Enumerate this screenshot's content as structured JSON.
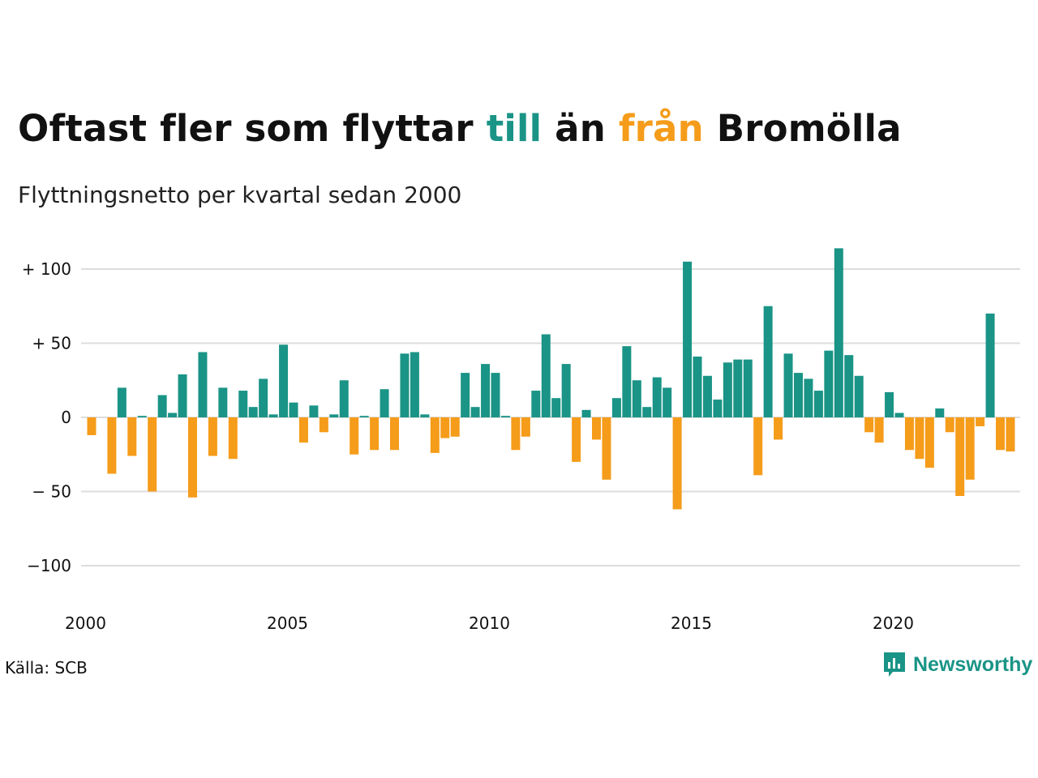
{
  "title": {
    "part1": "Oftast fler som flyttar ",
    "till": "till",
    "part2": " än ",
    "fran": "från",
    "part3": " Bromölla"
  },
  "subtitle": "Flyttningsnetto per kvartal sedan 2000",
  "source": "Källa: SCB",
  "brand": "Newsworthy",
  "colors": {
    "positive": "#1a9486",
    "negative": "#f59c1a",
    "grid": "#dddddd",
    "text": "#111111"
  },
  "chart_data": {
    "type": "bar",
    "start_year": 2000,
    "periods_per_year": 4,
    "ylim": [
      -120,
      120
    ],
    "yticks": [
      {
        "value": 100,
        "label": "+ 100"
      },
      {
        "value": 50,
        "label": "+  50"
      },
      {
        "value": 0,
        "label": "0"
      },
      {
        "value": -50,
        "label": "− 50"
      },
      {
        "value": -100,
        "label": "−100"
      }
    ],
    "xticks": [
      2000,
      2005,
      2010,
      2015,
      2020
    ],
    "values": [
      -12,
      0,
      -38,
      20,
      -26,
      1,
      -50,
      15,
      3,
      29,
      -54,
      44,
      -26,
      20,
      -28,
      18,
      7,
      26,
      2,
      49,
      10,
      -17,
      8,
      -10,
      2,
      25,
      -25,
      1,
      -22,
      19,
      -22,
      43,
      44,
      2,
      -24,
      -14,
      -13,
      30,
      7,
      36,
      30,
      1,
      -22,
      -13,
      18,
      56,
      13,
      36,
      -30,
      5,
      -15,
      -42,
      13,
      48,
      25,
      7,
      27,
      20,
      -62,
      105,
      41,
      28,
      12,
      37,
      39,
      39,
      -39,
      75,
      -15,
      43,
      30,
      26,
      18,
      45,
      114,
      42,
      28,
      -10,
      -17,
      17,
      3,
      -22,
      -28,
      -34,
      6,
      -10,
      -53,
      -42,
      -6,
      70,
      -22,
      -23
    ]
  }
}
